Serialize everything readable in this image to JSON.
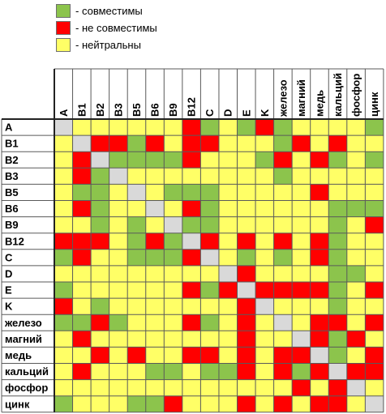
{
  "legend": [
    {
      "color": "#8cc44c",
      "label": "- совместимы",
      "key": "G"
    },
    {
      "color": "#ff0000",
      "label": "- не совместимы",
      "key": "R"
    },
    {
      "color": "#ffff66",
      "label": "- нейтральны",
      "key": "Y"
    }
  ],
  "colors": {
    "G": "#8cc44c",
    "R": "#ff0000",
    "Y": "#ffff66",
    "S": "#d9d9d9"
  },
  "chart_data": {
    "type": "heatmap",
    "columns": [
      "A",
      "B1",
      "B2",
      "B3",
      "B5",
      "B6",
      "B9",
      "B12",
      "C",
      "D",
      "E",
      "K",
      "железо",
      "магний",
      "медь",
      "кальций",
      "фосфор",
      "цинк"
    ],
    "rows": [
      "A",
      "B1",
      "B2",
      "B3",
      "B5",
      "B6",
      "B9",
      "B12",
      "C",
      "D",
      "E",
      "K",
      "железо",
      "магний",
      "медь",
      "кальций",
      "фосфор",
      "цинк"
    ],
    "values": [
      [
        "S",
        "Y",
        "Y",
        "Y",
        "Y",
        "Y",
        "Y",
        "R",
        "G",
        "Y",
        "G",
        "R",
        "G",
        "Y",
        "Y",
        "Y",
        "Y",
        "G"
      ],
      [
        "Y",
        "S",
        "R",
        "R",
        "G",
        "R",
        "Y",
        "R",
        "R",
        "Y",
        "Y",
        "Y",
        "G",
        "R",
        "Y",
        "R",
        "Y",
        "Y"
      ],
      [
        "Y",
        "R",
        "S",
        "G",
        "G",
        "G",
        "G",
        "R",
        "Y",
        "Y",
        "Y",
        "G",
        "R",
        "Y",
        "R",
        "G",
        "Y",
        "G"
      ],
      [
        "Y",
        "R",
        "G",
        "S",
        "Y",
        "Y",
        "Y",
        "Y",
        "Y",
        "Y",
        "Y",
        "Y",
        "G",
        "Y",
        "Y",
        "Y",
        "Y",
        "Y"
      ],
      [
        "Y",
        "G",
        "G",
        "Y",
        "S",
        "Y",
        "G",
        "G",
        "G",
        "Y",
        "Y",
        "Y",
        "Y",
        "Y",
        "R",
        "Y",
        "Y",
        "Y"
      ],
      [
        "Y",
        "R",
        "G",
        "Y",
        "Y",
        "S",
        "Y",
        "R",
        "G",
        "Y",
        "Y",
        "Y",
        "Y",
        "Y",
        "Y",
        "G",
        "G",
        "G"
      ],
      [
        "Y",
        "Y",
        "G",
        "Y",
        "G",
        "Y",
        "S",
        "G",
        "G",
        "Y",
        "Y",
        "Y",
        "Y",
        "Y",
        "Y",
        "G",
        "Y",
        "R"
      ],
      [
        "R",
        "R",
        "R",
        "Y",
        "G",
        "R",
        "G",
        "S",
        "R",
        "Y",
        "R",
        "Y",
        "R",
        "Y",
        "R",
        "G",
        "Y",
        "Y"
      ],
      [
        "G",
        "R",
        "Y",
        "Y",
        "G",
        "G",
        "G",
        "R",
        "S",
        "Y",
        "G",
        "Y",
        "G",
        "Y",
        "R",
        "G",
        "Y",
        "Y"
      ],
      [
        "Y",
        "Y",
        "Y",
        "Y",
        "Y",
        "Y",
        "Y",
        "Y",
        "Y",
        "S",
        "R",
        "Y",
        "Y",
        "Y",
        "Y",
        "G",
        "G",
        "Y"
      ],
      [
        "G",
        "Y",
        "Y",
        "Y",
        "Y",
        "Y",
        "Y",
        "R",
        "G",
        "R",
        "S",
        "R",
        "R",
        "R",
        "R",
        "G",
        "Y",
        "R"
      ],
      [
        "R",
        "Y",
        "G",
        "Y",
        "Y",
        "Y",
        "Y",
        "Y",
        "Y",
        "Y",
        "R",
        "S",
        "Y",
        "Y",
        "Y",
        "G",
        "Y",
        "Y"
      ],
      [
        "G",
        "G",
        "R",
        "G",
        "Y",
        "Y",
        "Y",
        "R",
        "G",
        "Y",
        "R",
        "Y",
        "S",
        "Y",
        "R",
        "R",
        "Y",
        "R"
      ],
      [
        "Y",
        "R",
        "Y",
        "Y",
        "Y",
        "Y",
        "Y",
        "Y",
        "Y",
        "Y",
        "R",
        "Y",
        "Y",
        "S",
        "R",
        "G",
        "R",
        "Y"
      ],
      [
        "Y",
        "Y",
        "R",
        "Y",
        "R",
        "Y",
        "Y",
        "R",
        "R",
        "Y",
        "R",
        "Y",
        "R",
        "R",
        "S",
        "G",
        "Y",
        "R"
      ],
      [
        "Y",
        "R",
        "Y",
        "Y",
        "Y",
        "G",
        "G",
        "Y",
        "G",
        "G",
        "R",
        "Y",
        "R",
        "G",
        "R",
        "S",
        "R",
        "R"
      ],
      [
        "Y",
        "Y",
        "Y",
        "Y",
        "Y",
        "Y",
        "Y",
        "Y",
        "Y",
        "Y",
        "Y",
        "Y",
        "Y",
        "R",
        "Y",
        "R",
        "S",
        "Y"
      ],
      [
        "G",
        "Y",
        "Y",
        "Y",
        "G",
        "G",
        "R",
        "Y",
        "Y",
        "Y",
        "R",
        "Y",
        "R",
        "Y",
        "R",
        "R",
        "Y",
        "S"
      ]
    ]
  }
}
